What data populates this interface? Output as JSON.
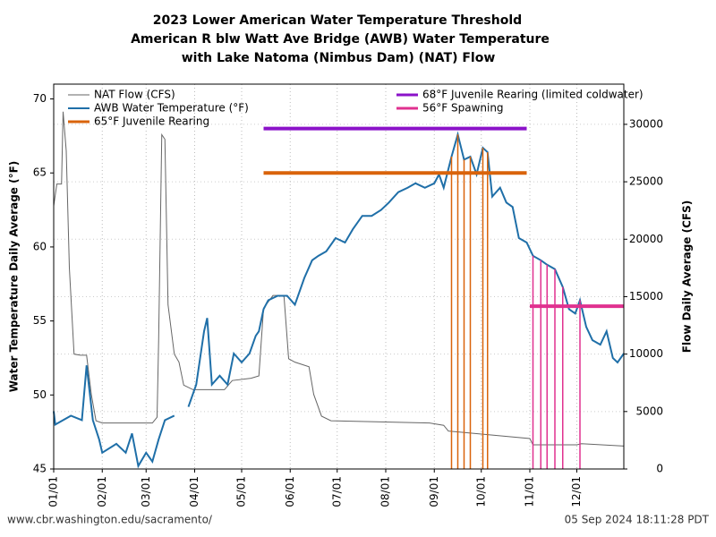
{
  "chart_data": {
    "type": "line",
    "title": [
      "2023 Lower American Water Temperature Threshold",
      "American R blw Watt Ave Bridge (AWB) Water Temperature",
      "with Lake Natoma (Nimbus Dam) (NAT) Flow"
    ],
    "ylabel": "Water Temperature Daily Average (°F)",
    "y2label": "Flow Daily Average (CFS)",
    "xlim": [
      0,
      364
    ],
    "xticks": [
      {
        "value": 0,
        "label": "01/01"
      },
      {
        "value": 31,
        "label": "02/01"
      },
      {
        "value": 59,
        "label": "03/01"
      },
      {
        "value": 90,
        "label": "04/01"
      },
      {
        "value": 120,
        "label": "05/01"
      },
      {
        "value": 151,
        "label": "06/01"
      },
      {
        "value": 181,
        "label": "07/01"
      },
      {
        "value": 212,
        "label": "08/01"
      },
      {
        "value": 243,
        "label": "09/01"
      },
      {
        "value": 273,
        "label": "10/01"
      },
      {
        "value": 304,
        "label": "11/01"
      },
      {
        "value": 334,
        "label": "12/01"
      }
    ],
    "ylim": [
      45,
      71
    ],
    "yticks": [
      45,
      50,
      55,
      60,
      65,
      70
    ],
    "y2lim": [
      0,
      33500
    ],
    "y2ticks": [
      0,
      5000,
      10000,
      15000,
      20000,
      25000,
      30000
    ],
    "grid": true,
    "series": [
      {
        "name": "NAT Flow (CFS)",
        "color": "#666666",
        "axis": "y2",
        "style": "line",
        "x": [
          0,
          2,
          5,
          6,
          8,
          10,
          13,
          17,
          21,
          24,
          27,
          31,
          63,
          66,
          67,
          69,
          71,
          73,
          77,
          80,
          83,
          89,
          109,
          114,
          126,
          131,
          134,
          140,
          147,
          150,
          154,
          163,
          166,
          171,
          177,
          240,
          249,
          252,
          304,
          306,
          334,
          337,
          364
        ],
        "values": [
          22900,
          24800,
          24800,
          31100,
          27700,
          17500,
          10000,
          9900,
          9900,
          6500,
          4200,
          4000,
          4000,
          4500,
          11200,
          29100,
          28700,
          14300,
          10000,
          9300,
          7300,
          6900,
          6900,
          7700,
          7900,
          8100,
          14000,
          15100,
          15100,
          9600,
          9300,
          8900,
          6500,
          4600,
          4200,
          4000,
          3800,
          3300,
          2650,
          2100,
          2100,
          2200,
          2000
        ]
      },
      {
        "name": "AWB Water Temperature (°F)",
        "color": "#1f6fa8",
        "axis": "y",
        "style": "line",
        "x": [
          0,
          1,
          11,
          18,
          21,
          25,
          29,
          31,
          40,
          46,
          50,
          54,
          59,
          63,
          67,
          71,
          77,
          80,
          86,
          91,
          96,
          98,
          101,
          106,
          111,
          115,
          120,
          125,
          129,
          131,
          134,
          137,
          143,
          149,
          154,
          160,
          165,
          169,
          174,
          180,
          186,
          191,
          197,
          203,
          209,
          214,
          220,
          226,
          231,
          237,
          243,
          246,
          249,
          254,
          258,
          262,
          266,
          270,
          274,
          277,
          280,
          285,
          289,
          293,
          297,
          302,
          306,
          311,
          315,
          320,
          325,
          329,
          333,
          336,
          340,
          344,
          349,
          353,
          357,
          360,
          364
        ],
        "values": [
          48.9,
          48.0,
          48.6,
          48.3,
          52.0,
          48.3,
          47.0,
          46.1,
          46.7,
          46.1,
          47.4,
          45.2,
          46.1,
          45.5,
          47.0,
          48.3,
          48.6,
          null,
          49.2,
          50.7,
          54.3,
          55.2,
          50.7,
          51.3,
          50.7,
          52.8,
          52.2,
          52.8,
          54.0,
          54.3,
          55.8,
          56.4,
          56.7,
          56.7,
          56.1,
          57.9,
          59.1,
          59.4,
          59.7,
          60.6,
          60.3,
          61.2,
          62.1,
          62.1,
          62.5,
          63.0,
          63.7,
          64.0,
          64.3,
          64.0,
          64.3,
          64.9,
          64.0,
          66.1,
          67.6,
          65.9,
          66.1,
          64.9,
          66.7,
          66.4,
          63.4,
          64.0,
          63.0,
          62.7,
          60.6,
          60.3,
          59.4,
          59.1,
          58.8,
          58.5,
          57.3,
          55.8,
          55.5,
          56.4,
          54.6,
          53.7,
          53.4,
          54.3,
          52.5,
          52.2,
          52.8
        ]
      },
      {
        "name": "65°F Juvenile Rearing",
        "color": "#d9630a",
        "axis": "y",
        "style": "threshold",
        "x": [
          134,
          302
        ],
        "values": [
          65,
          65
        ]
      },
      {
        "name": "68°F Juvenile Rearing (limited coldwater)",
        "color": "#8b12c9",
        "axis": "y",
        "style": "threshold",
        "x": [
          134,
          302
        ],
        "values": [
          68,
          68
        ]
      },
      {
        "name": "56°F Spawning",
        "color": "#e0318f",
        "axis": "y",
        "style": "threshold",
        "x": [
          304,
          364
        ],
        "values": [
          56,
          56
        ]
      }
    ],
    "footer_left": "www.cbr.washington.edu/sacramento/",
    "footer_right": "05 Sep 2024 18:11:28 PDT"
  }
}
